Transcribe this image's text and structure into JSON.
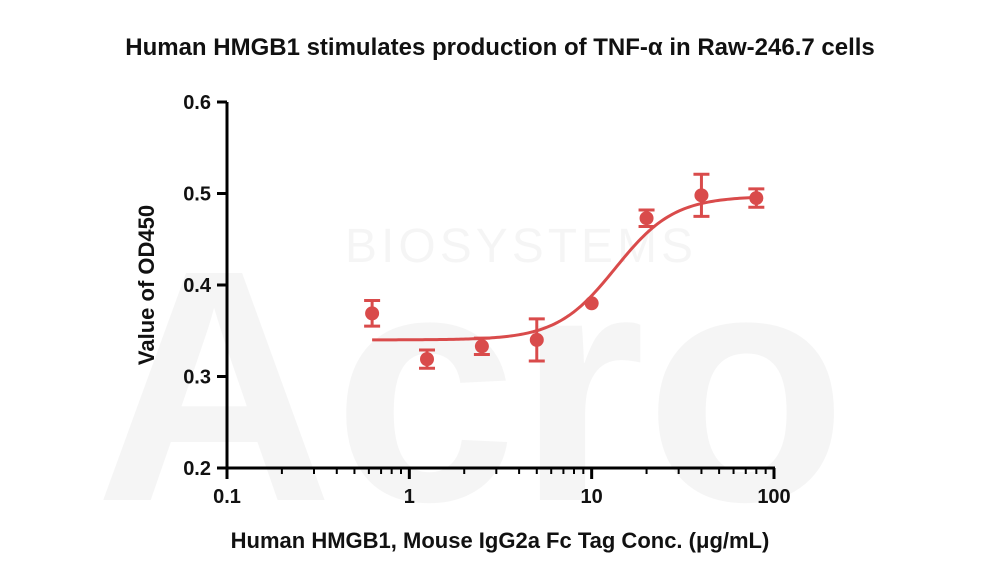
{
  "chart_data": {
    "type": "scatter",
    "title": "Human HMGB1 stimulates production of TNF-α  in Raw-246.7 cells",
    "xlabel": "Human HMGB1, Mouse IgG2a Fc Tag Conc. (μg/mL)",
    "ylabel": "Value of OD450",
    "x_scale": "log",
    "xlim": [
      0.1,
      100
    ],
    "ylim": [
      0.2,
      0.6
    ],
    "x_ticks": [
      0.1,
      1,
      10,
      100
    ],
    "x_tick_labels": [
      "0.1",
      "1",
      "10",
      "100"
    ],
    "y_ticks": [
      0.2,
      0.3,
      0.4,
      0.5,
      0.6
    ],
    "y_tick_labels": [
      "0.2",
      "0.3",
      "0.4",
      "0.5",
      "0.6"
    ],
    "grid": false,
    "legend": "none",
    "series": [
      {
        "color": "#d94b4b",
        "points": [
          {
            "x": 0.625,
            "y": 0.369,
            "err": 0.014
          },
          {
            "x": 1.25,
            "y": 0.319,
            "err": 0.01
          },
          {
            "x": 2.5,
            "y": 0.333,
            "err": 0.009
          },
          {
            "x": 5,
            "y": 0.34,
            "err": 0.023
          },
          {
            "x": 10,
            "y": 0.38,
            "err": 0.0
          },
          {
            "x": 20,
            "y": 0.473,
            "err": 0.009
          },
          {
            "x": 40,
            "y": 0.498,
            "err": 0.023
          },
          {
            "x": 80,
            "y": 0.495,
            "err": 0.01
          }
        ],
        "fit": {
          "model": "4PL",
          "bottom": 0.34,
          "top": 0.497,
          "ec50": 13.5,
          "hill": 2.7,
          "x_range": [
            0.625,
            80
          ]
        }
      }
    ]
  },
  "watermark": {
    "brand": "Acro",
    "sub": "BIOSYSTEMS"
  }
}
